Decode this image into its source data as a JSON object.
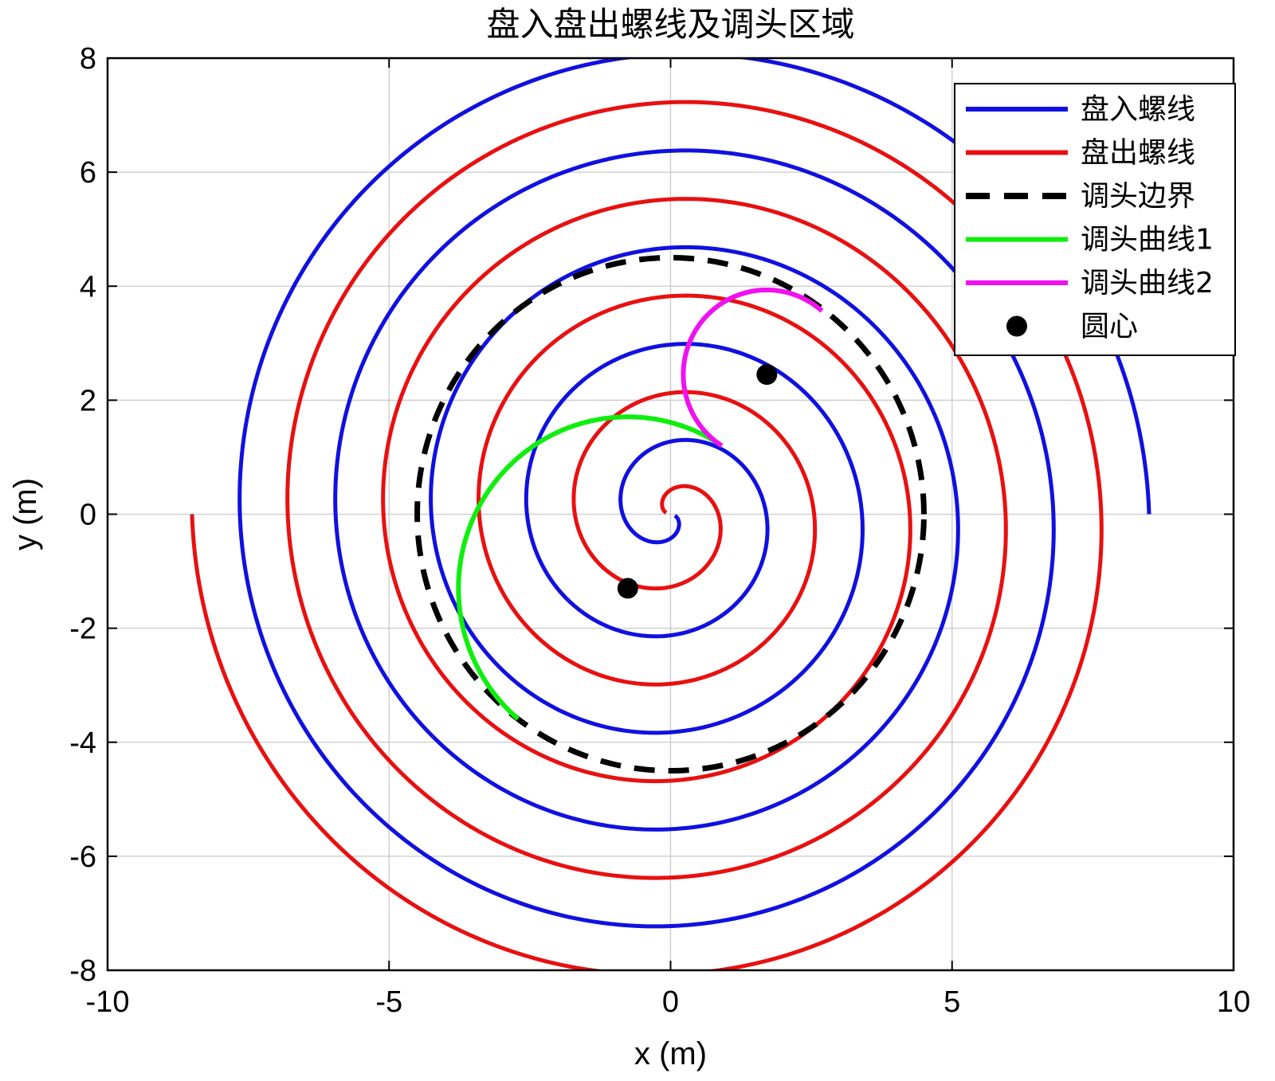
{
  "chart_data": {
    "type": "line",
    "title": "盘入盘出螺线及调头区域",
    "xlabel": "x (m)",
    "ylabel": "y (m)",
    "xlim": [
      -10,
      10
    ],
    "ylim": [
      -8,
      8
    ],
    "aspect": "equal",
    "grid": true,
    "box": true,
    "legend_position": "top-right",
    "xticks": [
      -10,
      -5,
      0,
      5,
      10
    ],
    "yticks": [
      -8,
      -6,
      -4,
      -2,
      0,
      2,
      4,
      6,
      8
    ],
    "xtick_labels": [
      "-10",
      "-5",
      "0",
      "5",
      "10"
    ],
    "ytick_labels": [
      "-8",
      "-6",
      "-4",
      "-2",
      "0",
      "2",
      "4",
      "6",
      "8"
    ],
    "series": [
      {
        "name": "盘入螺线",
        "kind": "archimedean-spiral",
        "color": "#1010e0",
        "pitch": 1.7,
        "theta_start": 0.3,
        "theta_end": 31.4159,
        "direction": "clockwise",
        "endpoint": [
          8.5,
          0
        ]
      },
      {
        "name": "盘出螺线",
        "kind": "archimedean-spiral",
        "color": "#e81010",
        "pitch": 1.7,
        "theta_start": 0.3,
        "theta_end": 31.4159,
        "direction": "clockwise-rotated-180",
        "endpoint": [
          -8.5,
          0
        ]
      },
      {
        "name": "调头边界",
        "kind": "circle",
        "color": "#000000",
        "dashed": true,
        "center": [
          0,
          0
        ],
        "radius": 4.5
      },
      {
        "name": "调头曲线1",
        "kind": "arc",
        "color": "#10ee10",
        "center": [
          -0.76,
          -1.3
        ],
        "from": [
          -2.71,
          -3.59
        ],
        "to": [
          0.91,
          1.2
        ]
      },
      {
        "name": "调头曲线2",
        "kind": "arc",
        "color": "#f010f0",
        "center": [
          1.71,
          2.45
        ],
        "from": [
          0.91,
          1.2
        ],
        "to": [
          2.71,
          3.59
        ]
      },
      {
        "name": "圆心",
        "kind": "points",
        "color": "#000000",
        "points": [
          [
            -0.76,
            -1.3
          ],
          [
            1.71,
            2.45
          ]
        ]
      }
    ]
  }
}
